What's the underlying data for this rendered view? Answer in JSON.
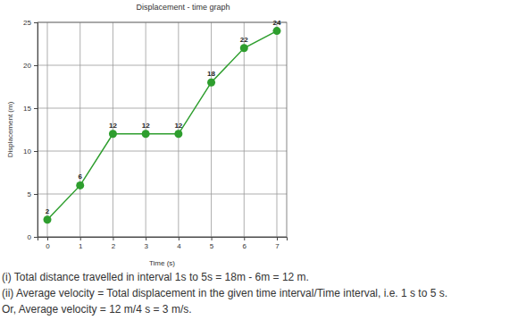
{
  "chart_data": {
    "type": "line",
    "title": "Displacement - time graph",
    "x_label": "Time (s)",
    "y_label": "Displacement (m)",
    "x": [
      0,
      1,
      2,
      3,
      4,
      5,
      6,
      7
    ],
    "series": [
      {
        "name": "Displacement",
        "color": "#2e9e2e",
        "marker": "circle",
        "values": [
          2,
          6,
          12,
          12,
          12,
          18,
          22,
          24
        ]
      }
    ],
    "xlim": [
      -0.3,
      7.3
    ],
    "xticks": [
      0,
      1,
      2,
      3,
      4,
      5,
      6,
      7
    ],
    "ylim": [
      0,
      25
    ],
    "yticks": [
      0,
      5,
      10,
      15,
      20,
      25
    ],
    "grid": true,
    "data_labels": true,
    "annotations": [
      "(i) Total distance travelled in interval 1s to 5s = 18m - 6m = 12 m.",
      "(ii) Average velocity = Total displacement in the given time interval/Time interval, i.e. 1 s to 5 s.",
      "Or, Average velocity = 12 m/4 s = 3 m/s."
    ]
  }
}
